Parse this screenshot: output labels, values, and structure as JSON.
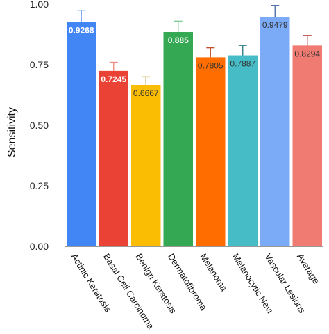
{
  "chart_data": {
    "type": "bar",
    "ylabel": "Sensitivity",
    "ylim": [
      0,
      1.0
    ],
    "yticks": [
      "0.00",
      "0.25",
      "0.50",
      "0.75",
      "1.00"
    ],
    "categories": [
      "Actinic Keratosis",
      "Basal Cell Carcinoma",
      "Benign Keratosis",
      "Dermatofibroma",
      "Melanoma",
      "Melanocytic Nevi",
      "Vascular Lesions",
      "Average"
    ],
    "values": [
      0.9268,
      0.7245,
      0.6667,
      0.885,
      0.7805,
      0.7887,
      0.9479,
      0.8294
    ],
    "value_labels": [
      "0.9268",
      "0.7245",
      "0.6667",
      "0.885",
      "0.7805",
      "0.7887",
      "0.9479",
      "0.8294"
    ],
    "error_upper": [
      0.975,
      0.76,
      0.7,
      0.93,
      0.82,
      0.83,
      0.995,
      0.87
    ],
    "colors": [
      "#4285F4",
      "#EA4335",
      "#FBBC04",
      "#34A853",
      "#FF6D01",
      "#46BDC6",
      "#7BAAF7",
      "#F07B72"
    ],
    "error_colors": [
      "#7BAAF7",
      "#F28B82",
      "#C9A23A",
      "#81C995",
      "#C0502A",
      "#2F7E85",
      "#4F6FA8",
      "#C0504D"
    ],
    "label_colors": [
      "#ffffff",
      "#ffffff",
      "#333333",
      "#ffffff",
      "#333333",
      "#333333",
      "#333333",
      "#333333"
    ],
    "grid": false,
    "legend": "none"
  }
}
